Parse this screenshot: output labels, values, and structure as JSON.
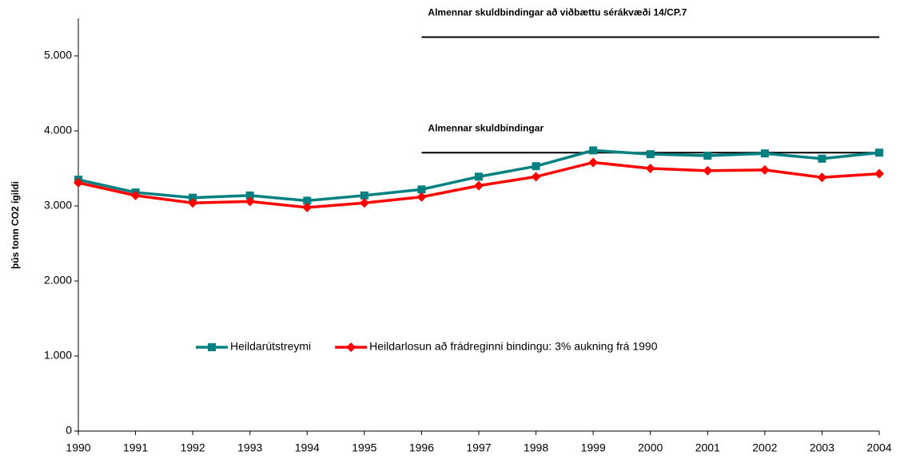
{
  "chart_data": {
    "type": "line",
    "y_label": "þús tonn CO2 ígildi",
    "x": [
      1990,
      1991,
      1992,
      1993,
      1994,
      1995,
      1996,
      1997,
      1998,
      1999,
      2000,
      2001,
      2002,
      2003,
      2004
    ],
    "xlim": [
      1990,
      2004
    ],
    "xticks": [
      1990,
      1991,
      1992,
      1993,
      1994,
      1995,
      1996,
      1997,
      1998,
      1999,
      2000,
      2001,
      2002,
      2003,
      2004
    ],
    "ylim": [
      0,
      5500
    ],
    "yticks": [
      0,
      {
        "value": 1000,
        "label": "1.000"
      },
      {
        "value": 2000,
        "label": "2.000"
      },
      {
        "value": 3000,
        "label": "3.000"
      },
      {
        "value": 4000,
        "label": "4.000"
      },
      {
        "value": 5000,
        "label": "5.000"
      }
    ],
    "grid": false,
    "legend": "center",
    "series": [
      {
        "name": "Heildarútstreymi",
        "color": "#008080",
        "marker": "square",
        "values": [
          3350,
          3180,
          3110,
          3140,
          3070,
          3140,
          3220,
          3390,
          3530,
          3740,
          3690,
          3670,
          3700,
          3630,
          3710
        ]
      },
      {
        "name": "Heildarlosun að frádreginni bindingu: 3% aukning frá 1990",
        "color": "#ff0000",
        "marker": "diamond",
        "values": [
          3310,
          3140,
          3040,
          3060,
          2980,
          3040,
          3120,
          3270,
          3390,
          3580,
          3500,
          3470,
          3480,
          3380,
          3430
        ]
      }
    ],
    "annotations": [
      {
        "text": "Almennar skuldbindingar að viðbættu sérákvæði 14/CP.7",
        "x": [
          1996,
          2004
        ],
        "y": 5250
      },
      {
        "text": "Almennar skuldbindingar",
        "x": [
          1996,
          2004
        ],
        "y": 3710
      }
    ]
  }
}
